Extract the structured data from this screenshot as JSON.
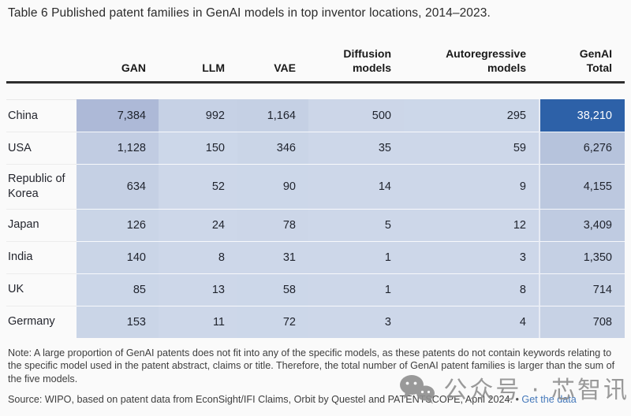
{
  "title": "Table 6 Published patent families in GenAI models in top inventor locations, 2014–2023.",
  "table": {
    "column_headers": [
      "GAN",
      "LLM",
      "VAE",
      "Diffusion\nmodels",
      "Autoregressive\nmodels",
      "GenAI\nTotal"
    ],
    "column_keys": [
      "gan",
      "llm",
      "vae",
      "diffusion-models",
      "autoregressive-models",
      "genai-total"
    ],
    "rows": [
      {
        "label": "China",
        "values": [
          "7,384",
          "992",
          "1,164",
          "500",
          "295"
        ],
        "value_bgs": [
          "#adb9d7",
          "#c6d1e5",
          "#c5d0e4",
          "#ccd6e8",
          "#ccd7e9"
        ],
        "total": "38,210",
        "total_bg": "#2d61a8",
        "total_color": "#ffffff"
      },
      {
        "label": "USA",
        "values": [
          "1,128",
          "150",
          "346",
          "35",
          "59"
        ],
        "value_bgs": [
          "#c1cce2",
          "#ccd7e9",
          "#cad5e7",
          "#cdd7e9",
          "#cdd7e9"
        ],
        "total": "6,276",
        "total_bg": "#b6c3dc",
        "total_color": "#20242e"
      },
      {
        "label": "Republic of Korea",
        "values": [
          "634",
          "52",
          "90",
          "14",
          "9"
        ],
        "value_bgs": [
          "#c5d0e4",
          "#cdd7e9",
          "#ccd7e9",
          "#cdd7e9",
          "#cdd7e9"
        ],
        "total": "4,155",
        "total_bg": "#bcc8df",
        "total_color": "#20242e"
      },
      {
        "label": "Japan",
        "values": [
          "126",
          "24",
          "78",
          "5",
          "12"
        ],
        "value_bgs": [
          "#cad5e7",
          "#cdd7e9",
          "#ccd6e8",
          "#cdd7e9",
          "#cdd7e9"
        ],
        "total": "3,409",
        "total_bg": "#bfcbe1",
        "total_color": "#20242e"
      },
      {
        "label": "India",
        "values": [
          "140",
          "8",
          "31",
          "1",
          "3"
        ],
        "value_bgs": [
          "#cad5e7",
          "#cdd7e9",
          "#cdd7e9",
          "#cdd7e9",
          "#cdd7e9"
        ],
        "total": "1,350",
        "total_bg": "#c5d0e4",
        "total_color": "#20242e"
      },
      {
        "label": "UK",
        "values": [
          "85",
          "13",
          "58",
          "1",
          "8"
        ],
        "value_bgs": [
          "#cbd6e8",
          "#cdd7e9",
          "#ccd7e9",
          "#cdd7e9",
          "#cdd7e9"
        ],
        "total": "714",
        "total_bg": "#c7d2e5",
        "total_color": "#20242e"
      },
      {
        "label": "Germany",
        "values": [
          "153",
          "11",
          "72",
          "3",
          "4"
        ],
        "value_bgs": [
          "#cad5e7",
          "#cdd7e9",
          "#ccd7e9",
          "#cdd7e9",
          "#cdd7e9"
        ],
        "total": "708",
        "total_bg": "#c7d2e5",
        "total_color": "#20242e"
      }
    ]
  },
  "chart_data": {
    "type": "table",
    "title": "Table 6 Published patent families in GenAI models in top inventor locations, 2014–2023.",
    "columns": [
      "GAN",
      "LLM",
      "VAE",
      "Diffusion models",
      "Autoregressive models",
      "GenAI Total"
    ],
    "rows": [
      {
        "location": "China",
        "GAN": 7384,
        "LLM": 992,
        "VAE": 1164,
        "Diffusion models": 500,
        "Autoregressive models": 295,
        "GenAI Total": 38210
      },
      {
        "location": "USA",
        "GAN": 1128,
        "LLM": 150,
        "VAE": 346,
        "Diffusion models": 35,
        "Autoregressive models": 59,
        "GenAI Total": 6276
      },
      {
        "location": "Republic of Korea",
        "GAN": 634,
        "LLM": 52,
        "VAE": 90,
        "Diffusion models": 14,
        "Autoregressive models": 9,
        "GenAI Total": 4155
      },
      {
        "location": "Japan",
        "GAN": 126,
        "LLM": 24,
        "VAE": 78,
        "Diffusion models": 5,
        "Autoregressive models": 12,
        "GenAI Total": 3409
      },
      {
        "location": "India",
        "GAN": 140,
        "LLM": 8,
        "VAE": 31,
        "Diffusion models": 1,
        "Autoregressive models": 3,
        "GenAI Total": 1350
      },
      {
        "location": "UK",
        "GAN": 85,
        "LLM": 13,
        "VAE": 58,
        "Diffusion models": 1,
        "Autoregressive models": 8,
        "GenAI Total": 714
      },
      {
        "location": "Germany",
        "GAN": 153,
        "LLM": 11,
        "VAE": 72,
        "Diffusion models": 3,
        "Autoregressive models": 4,
        "GenAI Total": 708
      }
    ],
    "highlight": {
      "cell": "China / GenAI Total",
      "color": "#2d61a8"
    }
  },
  "footer": {
    "note": "Note: A large proportion of GenAI patents does not fit into any of the specific models, as these patents do not contain keywords relating to the specific model used in the patent abstract, claims or title. Therefore, the total number of GenAI patent families is larger than the sum of the five models.",
    "source_text": "Source: WIPO, based on patent data from EconSight/IFI Claims, Orbit by Questel and PATENTSCOPE, April 2024.",
    "separator": "•",
    "link_label": "Get the data"
  },
  "watermark": {
    "text": "公众号 · 芯智讯",
    "icon": "wechat-icon",
    "color": "#8f8f8f"
  },
  "colors": {
    "page_bg": "#fafafa",
    "cell_base": "#cdd7e9",
    "china_total_bg": "#2d61a8",
    "header_rule": "#2e2e2e",
    "link": "#4478ba"
  }
}
